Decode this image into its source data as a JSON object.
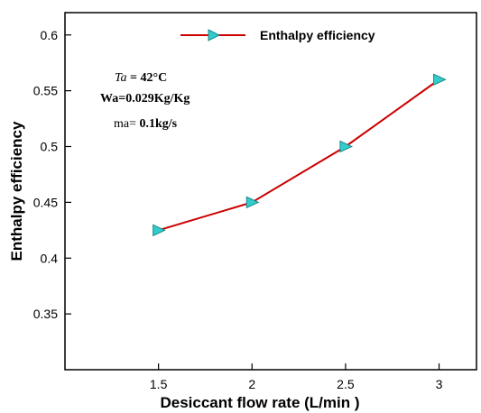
{
  "chart_data": {
    "type": "line",
    "title": "",
    "xlabel": "Desiccant flow rate (L/min )",
    "ylabel": "Enthalpy efficiency",
    "xlim": [
      1.0,
      3.2
    ],
    "ylim": [
      0.3,
      0.62
    ],
    "xticks": [
      1.5,
      2,
      2.5,
      3
    ],
    "yticks": [
      0.35,
      0.4,
      0.45,
      0.5,
      0.55,
      0.6
    ],
    "x_tick_labels": [
      "1.5",
      "2",
      "2.5",
      "3"
    ],
    "y_tick_labels": [
      "0.35",
      "0.4",
      "0.45",
      "0.5",
      "0.55",
      "0.6"
    ],
    "grid": false,
    "legend_position": "top-center",
    "series": [
      {
        "name": "Enthalpy efficiency",
        "color": "#cc0000",
        "marker": "triangle-right",
        "marker_color": "#33cccc",
        "x": [
          1.5,
          2,
          2.5,
          3
        ],
        "y": [
          0.425,
          0.45,
          0.5,
          0.56
        ]
      }
    ],
    "annotations": {
      "ta_var": "Ta",
      "ta_rest": " = 42°C",
      "wa": "Wa=0.029Kg/Kg",
      "ma_pre": "ma= ",
      "ma_val": "0.1kg/s"
    }
  }
}
